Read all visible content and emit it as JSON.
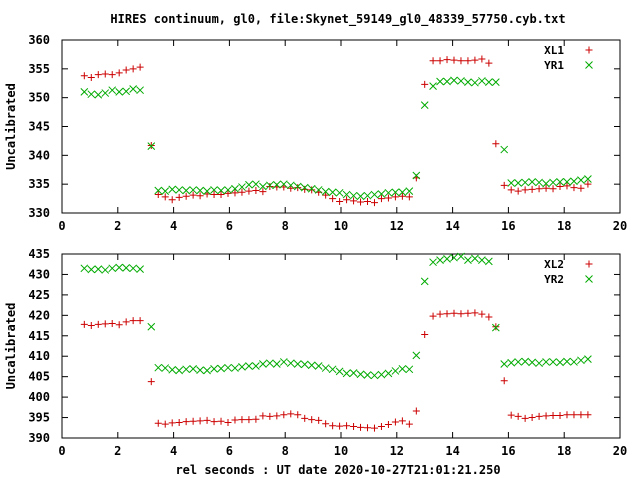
{
  "title": "HIRES continuum, gl0, file:Skynet_59149_gl0_48339_57750.cyb.txt",
  "xlabel": "rel seconds : UT date 2020-10-27T21:01:21.250",
  "colors": {
    "red": "#cc0000",
    "green": "#00aa00"
  },
  "chart_data": [
    {
      "type": "scatter",
      "ylabel": "Uncalibrated",
      "xlim": [
        0,
        20
      ],
      "ylim": [
        330,
        360
      ],
      "xticks": [
        0,
        2,
        4,
        6,
        8,
        10,
        12,
        14,
        16,
        18,
        20
      ],
      "yticks": [
        330,
        335,
        340,
        345,
        350,
        355,
        360
      ],
      "legend": "top-right",
      "series": [
        {
          "name": "XL1",
          "marker": "plus",
          "color": "#cc0000",
          "x": [
            0.8,
            1.05,
            1.3,
            1.55,
            1.8,
            2.05,
            2.3,
            2.55,
            2.8,
            3.2,
            3.45,
            3.7,
            3.95,
            4.2,
            4.45,
            4.7,
            4.95,
            5.2,
            5.45,
            5.7,
            5.95,
            6.2,
            6.45,
            6.7,
            6.95,
            7.2,
            7.45,
            7.7,
            7.95,
            8.2,
            8.45,
            8.7,
            8.95,
            9.2,
            9.45,
            9.7,
            9.95,
            10.2,
            10.45,
            10.7,
            10.95,
            11.2,
            11.45,
            11.7,
            11.95,
            12.2,
            12.45,
            12.7,
            13.0,
            13.3,
            13.55,
            13.8,
            14.05,
            14.3,
            14.55,
            14.8,
            15.05,
            15.3,
            15.55,
            15.85,
            16.1,
            16.35,
            16.6,
            16.85,
            17.1,
            17.35,
            17.6,
            17.85,
            18.1,
            18.35,
            18.6,
            18.85
          ],
          "y": [
            353.8,
            353.5,
            354,
            354.1,
            354,
            354.3,
            354.8,
            355,
            355.3,
            341.7,
            333.2,
            332.8,
            332.3,
            332.7,
            332.9,
            333.1,
            333,
            333.3,
            333.2,
            333.2,
            333.4,
            333.5,
            333.6,
            333.8,
            333.9,
            333.7,
            334.6,
            334.5,
            334.5,
            334.3,
            334.4,
            334.1,
            334,
            333.6,
            333.1,
            332.5,
            332,
            332.3,
            332.1,
            331.9,
            332,
            331.8,
            332.5,
            332.6,
            332.8,
            332.9,
            332.8,
            336.1,
            352.3,
            356.4,
            356.4,
            356.6,
            356.5,
            356.4,
            356.4,
            356.5,
            356.7,
            356,
            342,
            334.8,
            334,
            333.8,
            334,
            334.1,
            334.2,
            334.3,
            334.2,
            334.6,
            334.7,
            334.4,
            334.3,
            335
          ]
        },
        {
          "name": "YR1",
          "marker": "cross",
          "color": "#00aa00",
          "x": [
            0.8,
            1.05,
            1.3,
            1.55,
            1.8,
            2.05,
            2.3,
            2.55,
            2.8,
            3.2,
            3.45,
            3.7,
            3.95,
            4.2,
            4.45,
            4.7,
            4.95,
            5.2,
            5.45,
            5.7,
            5.95,
            6.2,
            6.45,
            6.7,
            6.95,
            7.2,
            7.45,
            7.7,
            7.95,
            8.2,
            8.45,
            8.7,
            8.95,
            9.2,
            9.45,
            9.7,
            9.95,
            10.2,
            10.45,
            10.7,
            10.95,
            11.2,
            11.45,
            11.7,
            11.95,
            12.2,
            12.45,
            12.7,
            13.0,
            13.3,
            13.55,
            13.8,
            14.05,
            14.3,
            14.55,
            14.8,
            15.05,
            15.3,
            15.55,
            15.85,
            16.1,
            16.35,
            16.6,
            16.85,
            17.1,
            17.35,
            17.6,
            17.85,
            18.1,
            18.35,
            18.6,
            18.85
          ],
          "y": [
            351,
            350.6,
            350.5,
            350.8,
            351.3,
            351,
            351.1,
            351.5,
            351.3,
            341.6,
            333.9,
            333.8,
            334.1,
            334,
            333.9,
            334,
            333.9,
            333.8,
            334,
            333.9,
            334,
            334.2,
            334.5,
            334.9,
            335,
            334.6,
            334.8,
            334.9,
            335,
            334.8,
            334.6,
            334.4,
            334.2,
            334,
            333.7,
            333.6,
            333.5,
            333.2,
            333,
            332.9,
            333,
            333.2,
            333.3,
            333.5,
            333.6,
            333.6,
            333.8,
            336.5,
            348.7,
            352,
            352.8,
            352.8,
            353,
            352.9,
            352.7,
            352.6,
            352.9,
            352.7,
            352.7,
            341,
            335.2,
            335.2,
            335.3,
            335.4,
            335.3,
            335.1,
            335.3,
            335.4,
            335.4,
            335.5,
            335.7,
            335.9
          ]
        }
      ]
    },
    {
      "type": "scatter",
      "ylabel": "Uncalibrated",
      "xlim": [
        0,
        20
      ],
      "ylim": [
        390,
        435
      ],
      "xticks": [
        0,
        2,
        4,
        6,
        8,
        10,
        12,
        14,
        16,
        18,
        20
      ],
      "yticks": [
        390,
        395,
        400,
        405,
        410,
        415,
        420,
        425,
        430,
        435
      ],
      "legend": "top-right",
      "series": [
        {
          "name": "XL2",
          "marker": "plus",
          "color": "#cc0000",
          "x": [
            0.8,
            1.05,
            1.3,
            1.55,
            1.8,
            2.05,
            2.3,
            2.55,
            2.8,
            3.2,
            3.45,
            3.7,
            3.95,
            4.2,
            4.45,
            4.7,
            4.95,
            5.2,
            5.45,
            5.7,
            5.95,
            6.2,
            6.45,
            6.7,
            6.95,
            7.2,
            7.45,
            7.7,
            7.95,
            8.2,
            8.45,
            8.7,
            8.95,
            9.2,
            9.45,
            9.7,
            9.95,
            10.2,
            10.45,
            10.7,
            10.95,
            11.2,
            11.45,
            11.7,
            11.95,
            12.2,
            12.45,
            12.7,
            13.0,
            13.3,
            13.55,
            13.8,
            14.05,
            14.3,
            14.55,
            14.8,
            15.05,
            15.3,
            15.55,
            15.85,
            16.1,
            16.35,
            16.6,
            16.85,
            17.1,
            17.35,
            17.6,
            17.85,
            18.1,
            18.35,
            18.6,
            18.85
          ],
          "y": [
            417.8,
            417.5,
            417.8,
            417.9,
            418,
            417.7,
            418.4,
            418.7,
            418.7,
            403.8,
            393.6,
            393.4,
            393.7,
            393.8,
            394,
            394.1,
            394.2,
            394.3,
            394,
            394.1,
            393.8,
            394.4,
            394.5,
            394.5,
            394.6,
            395.4,
            395.3,
            395.4,
            395.7,
            395.9,
            395.7,
            394.8,
            394.5,
            394.3,
            393.5,
            393,
            392.9,
            393,
            392.8,
            392.6,
            392.5,
            392.4,
            392.8,
            393.3,
            393.9,
            394.2,
            393.4,
            396.6,
            415.3,
            419.8,
            420.3,
            420.4,
            420.5,
            420.4,
            420.5,
            420.6,
            420.3,
            419.6,
            417.2,
            404,
            395.6,
            395.3,
            394.8,
            395,
            395.3,
            395.4,
            395.5,
            395.5,
            395.7,
            395.7,
            395.7,
            395.7
          ]
        },
        {
          "name": "YR2",
          "marker": "cross",
          "color": "#00aa00",
          "x": [
            0.8,
            1.05,
            1.3,
            1.55,
            1.8,
            2.05,
            2.3,
            2.55,
            2.8,
            3.2,
            3.45,
            3.7,
            3.95,
            4.2,
            4.45,
            4.7,
            4.95,
            5.2,
            5.45,
            5.7,
            5.95,
            6.2,
            6.45,
            6.7,
            6.95,
            7.2,
            7.45,
            7.7,
            7.95,
            8.2,
            8.45,
            8.7,
            8.95,
            9.2,
            9.45,
            9.7,
            9.95,
            10.2,
            10.45,
            10.7,
            10.95,
            11.2,
            11.45,
            11.7,
            11.95,
            12.2,
            12.45,
            12.7,
            13.0,
            13.3,
            13.55,
            13.8,
            14.05,
            14.3,
            14.55,
            14.8,
            15.05,
            15.3,
            15.55,
            15.85,
            16.1,
            16.35,
            16.6,
            16.85,
            17.1,
            17.35,
            17.6,
            17.85,
            18.1,
            18.35,
            18.6,
            18.85
          ],
          "y": [
            431.5,
            431.2,
            431.3,
            431.1,
            431.5,
            431.7,
            431.6,
            431.5,
            431.3,
            417.2,
            407.2,
            407.1,
            406.7,
            406.5,
            406.8,
            406.9,
            406.6,
            406.5,
            406.9,
            407,
            407.2,
            407.1,
            407.4,
            407.6,
            407.6,
            408.1,
            408.3,
            408.1,
            408.6,
            408.3,
            408.1,
            408,
            407.8,
            407.6,
            407.1,
            406.8,
            406.3,
            405.8,
            405.9,
            405.6,
            405.4,
            405.3,
            405.5,
            405.8,
            406.4,
            406.9,
            406.8,
            410.2,
            428.3,
            433,
            433.5,
            433.8,
            434.1,
            434.4,
            433.5,
            433.9,
            433.5,
            433.2,
            417,
            408.1,
            408.4,
            408.6,
            408.7,
            408.5,
            408.3,
            408.6,
            408.6,
            408.5,
            408.7,
            408.6,
            409,
            409.3
          ]
        }
      ]
    }
  ]
}
